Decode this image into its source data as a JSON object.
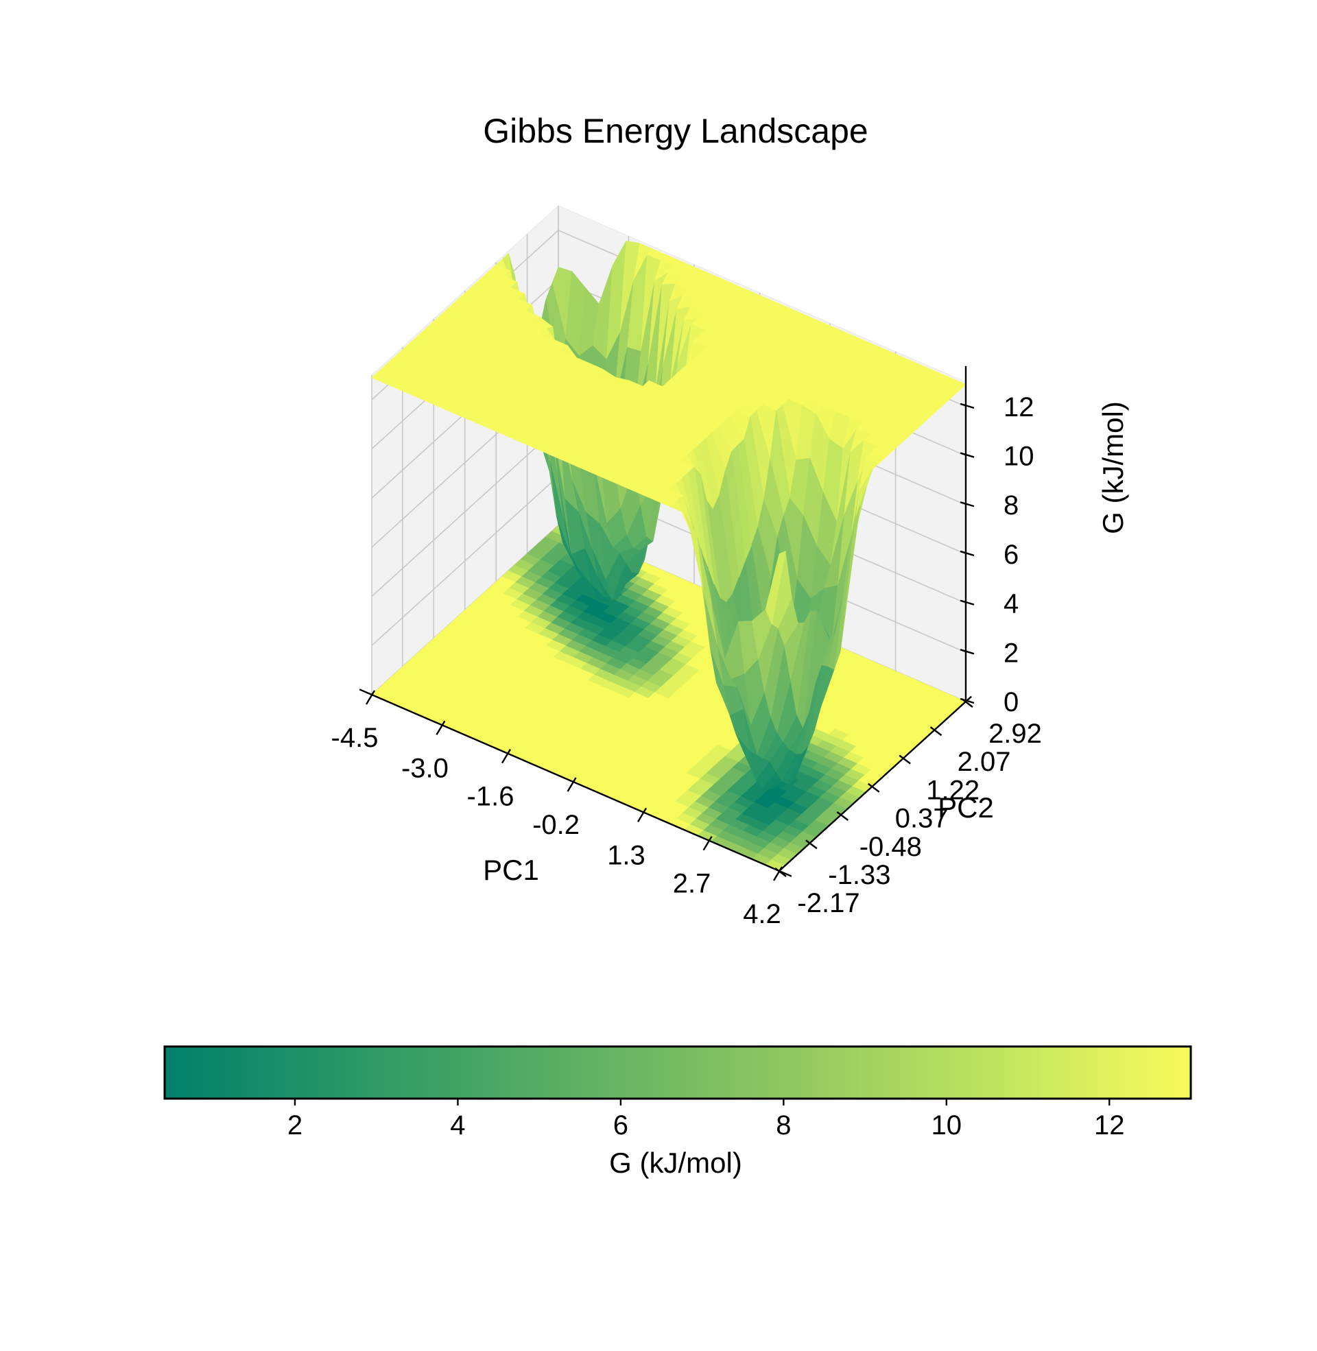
{
  "chart_data": {
    "type": "surface3d",
    "title": "Gibbs Energy Landscape",
    "xlabel": "PC1",
    "ylabel": "PC2",
    "zlabel": "G (kJ/mol)",
    "x_ticks": [
      "-4.5",
      "-3.0",
      "-1.6",
      "-0.2",
      "1.3",
      "2.7",
      "4.2"
    ],
    "y_ticks": [
      "-2.17",
      "-1.33",
      "-0.48",
      "0.37",
      "1.22",
      "2.07",
      "2.92"
    ],
    "z_ticks": [
      "0",
      "2",
      "4",
      "6",
      "8",
      "10",
      "12"
    ],
    "xlim": [
      -4.5,
      4.2
    ],
    "ylim": [
      -2.17,
      2.92
    ],
    "zlim": [
      0,
      13
    ],
    "surface_cap": 12.9,
    "minima": [
      {
        "pc1": -2.6,
        "pc2": 1.6,
        "g_min": 0.5
      },
      {
        "pc1": 3.0,
        "pc2": -0.7,
        "g_min": 0.5
      }
    ],
    "projection": "filled contour of G on the z = 0 plane",
    "grid": true,
    "colormap": [
      "#00806a",
      "#2e9966",
      "#5eb064",
      "#8fc661",
      "#bde35f",
      "#f8fb5c"
    ],
    "colorbar": {
      "orientation": "horizontal",
      "label": "G (kJ/mol)",
      "ticks": [
        "2",
        "4",
        "6",
        "8",
        "10",
        "12"
      ],
      "range": [
        0.4,
        13.0
      ]
    }
  }
}
